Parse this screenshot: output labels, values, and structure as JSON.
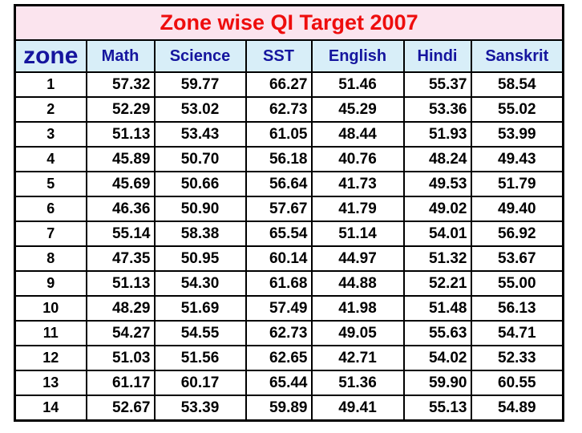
{
  "title": "Zone wise QI Target 2007",
  "colors": {
    "title_text": "#ee0d0d",
    "title_bg": "#fbe4ee",
    "header_text": "#15159e",
    "header_bg": "#d8eef8",
    "border": "#000000",
    "data_text": "#000000",
    "data_bg": "#ffffff"
  },
  "chart_data": {
    "type": "table",
    "title": "Zone wise QI Target 2007",
    "columns": [
      "zone",
      "Math",
      "Science",
      "SST",
      "English",
      "Hindi",
      "Sanskrit"
    ],
    "column_alignments": [
      "center",
      "right",
      "center",
      "right",
      "center",
      "right",
      "center"
    ],
    "rows": [
      [
        "1",
        "57.32",
        "59.77",
        "66.27",
        "51.46",
        "55.37",
        "58.54"
      ],
      [
        "2",
        "52.29",
        "53.02",
        "62.73",
        "45.29",
        "53.36",
        "55.02"
      ],
      [
        "3",
        "51.13",
        "53.43",
        "61.05",
        "48.44",
        "51.93",
        "53.99"
      ],
      [
        "4",
        "45.89",
        "50.70",
        "56.18",
        "40.76",
        "48.24",
        "49.43"
      ],
      [
        "5",
        "45.69",
        "50.66",
        "56.64",
        "41.73",
        "49.53",
        "51.79"
      ],
      [
        "6",
        "46.36",
        "50.90",
        "57.67",
        "41.79",
        "49.02",
        "49.40"
      ],
      [
        "7",
        "55.14",
        "58.38",
        "65.54",
        "51.14",
        "54.01",
        "56.92"
      ],
      [
        "8",
        "47.35",
        "50.95",
        "60.14",
        "44.97",
        "51.32",
        "53.67"
      ],
      [
        "9",
        "51.13",
        "54.30",
        "61.68",
        "44.88",
        "52.21",
        "55.00"
      ],
      [
        "10",
        "48.29",
        "51.69",
        "57.49",
        "41.98",
        "51.48",
        "56.13"
      ],
      [
        "11",
        "54.27",
        "54.55",
        "62.73",
        "49.05",
        "55.63",
        "54.71"
      ],
      [
        "12",
        "51.03",
        "51.56",
        "62.65",
        "42.71",
        "54.02",
        "52.33"
      ],
      [
        "13",
        "61.17",
        "60.17",
        "65.44",
        "51.36",
        "59.90",
        "60.55"
      ],
      [
        "14",
        "52.67",
        "53.39",
        "59.89",
        "49.41",
        "55.13",
        "54.89"
      ]
    ]
  }
}
